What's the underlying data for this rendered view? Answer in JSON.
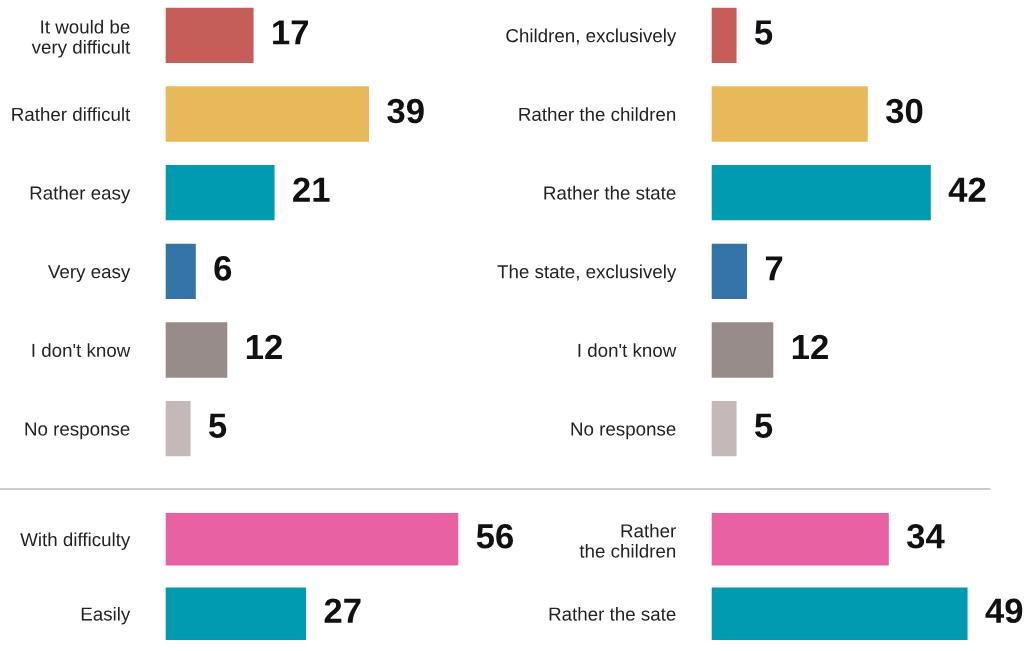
{
  "chart_data": [
    {
      "type": "bar",
      "orientation": "horizontal",
      "data_labels": true,
      "categories": [
        "It would be\nvery difficult",
        "Rather difficult",
        "Rather easy",
        "Very easy",
        "I don't know",
        "No response"
      ],
      "values": [
        17,
        39,
        21,
        6,
        12,
        5
      ],
      "colors": [
        "#c55d58",
        "#e8b85a",
        "#009bb0",
        "#3574a8",
        "#978c8a",
        "#c5b8b8"
      ]
    },
    {
      "type": "bar",
      "orientation": "horizontal",
      "data_labels": true,
      "categories": [
        "Children, exclusively",
        "Rather the children",
        "Rather the state",
        "The state, exclusively",
        "I don't know",
        "No response"
      ],
      "values": [
        5,
        30,
        42,
        7,
        12,
        5
      ],
      "colors": [
        "#c55d58",
        "#e8b85a",
        "#009bb0",
        "#3574a8",
        "#978c8a",
        "#c5b8b8"
      ]
    },
    {
      "type": "bar",
      "orientation": "horizontal",
      "data_labels": true,
      "categories": [
        "With difficulty",
        "Easily"
      ],
      "values": [
        56,
        27
      ],
      "colors": [
        "#e862a3",
        "#009bb0"
      ]
    },
    {
      "type": "bar",
      "orientation": "horizontal",
      "data_labels": true,
      "categories": [
        "Rather\nthe children",
        "Rather the sate"
      ],
      "values": [
        34,
        49
      ],
      "colors": [
        "#e862a3",
        "#009bb0"
      ]
    }
  ]
}
